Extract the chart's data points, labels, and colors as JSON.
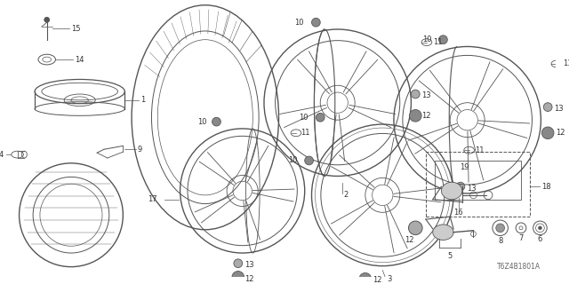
{
  "diagram_code": "T6Z4B1801A",
  "background_color": "#ffffff",
  "line_color": "#555555",
  "label_color": "#333333",
  "fig_width": 6.4,
  "fig_height": 3.2,
  "dpi": 100
}
